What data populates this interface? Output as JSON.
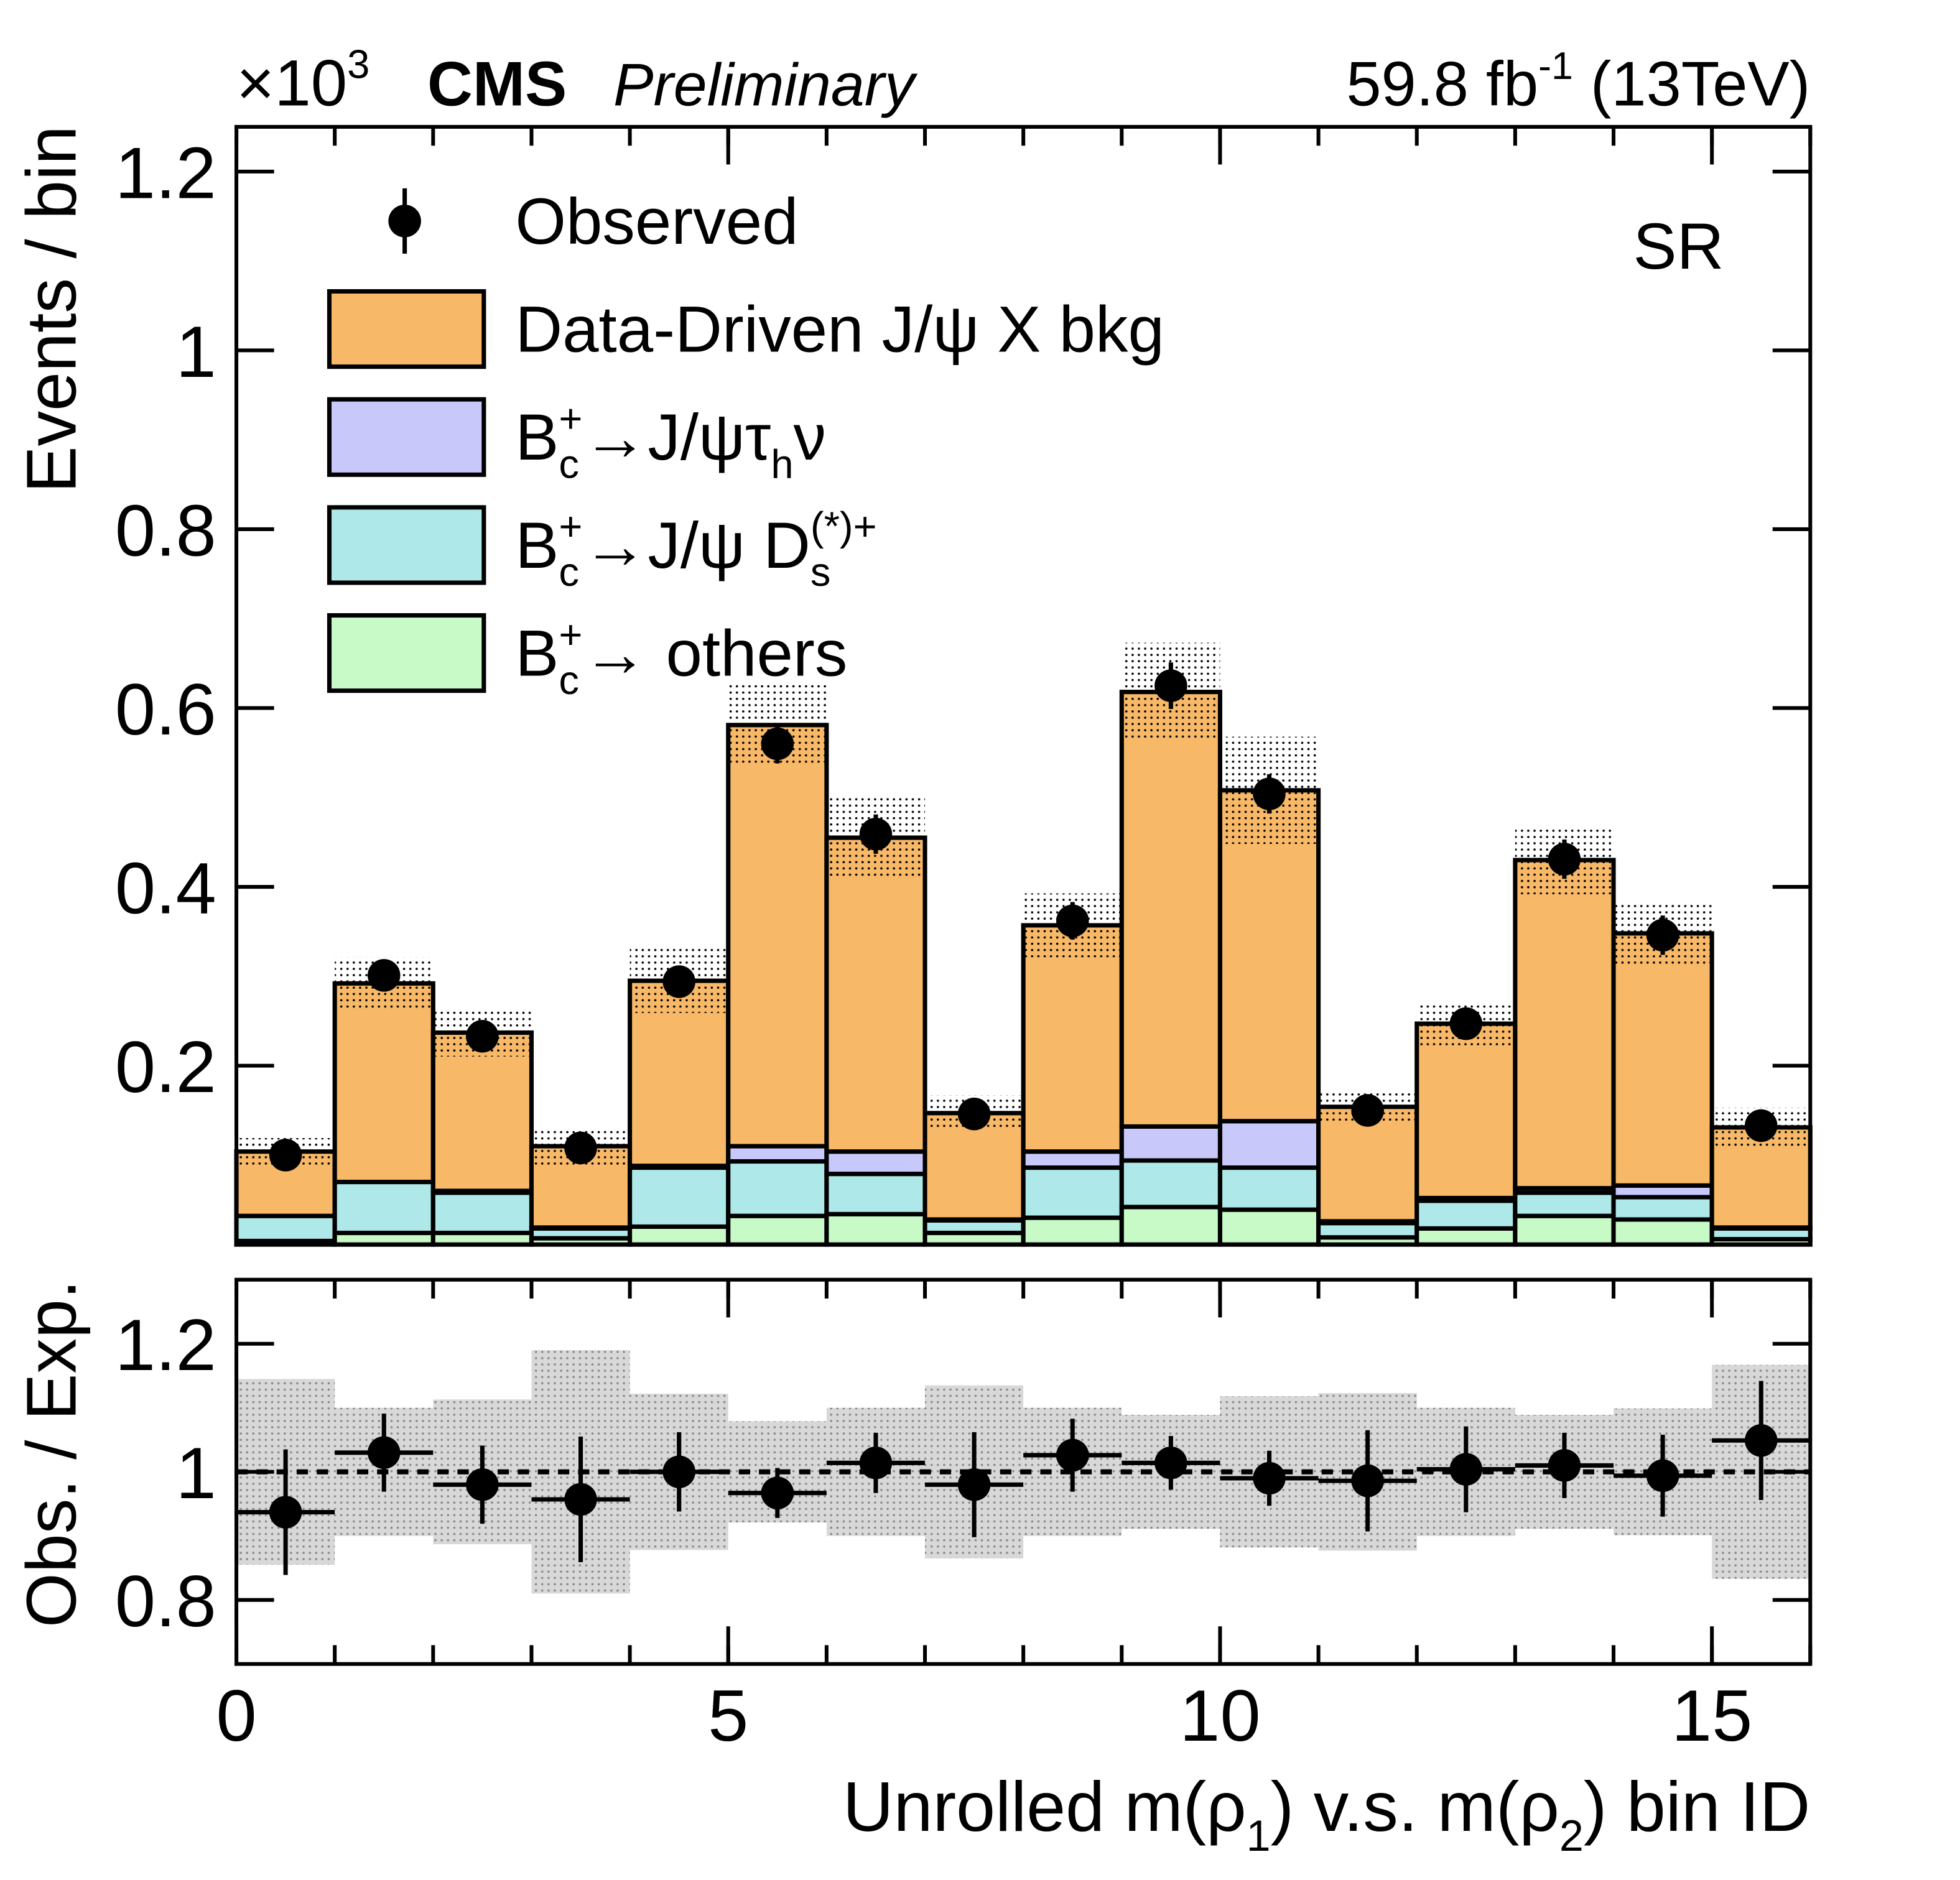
{
  "chart_data": [
    {
      "type": "histogram",
      "multiplier": [
        {
          "t": "×10"
        },
        {
          "sup": "3"
        }
      ],
      "experiment": "CMS",
      "status": "Preliminary",
      "lumi": [
        {
          "t": "59.8 fb"
        },
        {
          "sup": "-1"
        },
        {
          "t": " (13TeV)"
        }
      ],
      "region": "SR",
      "y_label": "Events / bin",
      "bins": [
        0,
        1,
        2,
        3,
        4,
        5,
        6,
        7,
        8,
        9,
        10,
        11,
        12,
        13,
        14,
        15,
        16
      ],
      "xlim": [
        0,
        16
      ],
      "ylim": [
        0,
        1.25
      ],
      "yticks": [
        0.2,
        0.4,
        0.6,
        0.8,
        1,
        1.2
      ],
      "stacked": true,
      "series": [
        {
          "name": [
            {
              "t": "Data-Driven J/ψ X bkg"
            }
          ],
          "color": "#f7b867",
          "values": [
            0.072,
            0.222,
            0.177,
            0.091,
            0.207,
            0.471,
            0.351,
            0.119,
            0.253,
            0.486,
            0.37,
            0.128,
            0.195,
            0.367,
            0.282,
            0.112
          ]
        },
        {
          "name": [
            {
              "t": "B"
            },
            {
              "sup": "+",
              "sub": "c"
            },
            {
              "t": "→J/ψτ"
            },
            {
              "sub": "h"
            },
            {
              "t": "ν"
            }
          ],
          "color": "#c8c8fa",
          "values": [
            0.0,
            0.0,
            0.002,
            0.001,
            0.002,
            0.017,
            0.025,
            0.001,
            0.018,
            0.038,
            0.052,
            0.002,
            0.003,
            0.005,
            0.013,
            0.001
          ]
        },
        {
          "name": [
            {
              "t": "B"
            },
            {
              "sup": "+",
              "sub": "c"
            },
            {
              "t": "→J/ψ D"
            },
            {
              "sup": "(*)+",
              "sub": "s"
            }
          ],
          "color": "#aee8e8",
          "values": [
            0.028,
            0.057,
            0.045,
            0.011,
            0.066,
            0.061,
            0.045,
            0.014,
            0.056,
            0.052,
            0.047,
            0.016,
            0.031,
            0.026,
            0.025,
            0.012
          ]
        },
        {
          "name": [
            {
              "t": "B"
            },
            {
              "sup": "+",
              "sub": "c"
            },
            {
              "t": "→ others"
            }
          ],
          "color": "#c8fac8",
          "values": [
            0.004,
            0.013,
            0.013,
            0.007,
            0.02,
            0.032,
            0.034,
            0.013,
            0.03,
            0.042,
            0.039,
            0.008,
            0.018,
            0.032,
            0.028,
            0.006
          ]
        }
      ],
      "observed": {
        "name": [
          {
            "t": "Observed"
          }
        ],
        "color": "#000000",
        "values": [
          0.1,
          0.301,
          0.233,
          0.108,
          0.294,
          0.56,
          0.459,
          0.146,
          0.362,
          0.625,
          0.504,
          0.15,
          0.247,
          0.431,
          0.346,
          0.133
        ],
        "errors": [
          0.01,
          0.018,
          0.014,
          0.011,
          0.018,
          0.022,
          0.022,
          0.012,
          0.021,
          0.026,
          0.022,
          0.012,
          0.017,
          0.022,
          0.022,
          0.012
        ]
      }
    },
    {
      "type": "ratio",
      "y_label": "Obs. / Exp.",
      "x_label": [
        {
          "t": "Unrolled m(ρ"
        },
        {
          "sub": "1"
        },
        {
          "t": ") v.s. m(ρ"
        },
        {
          "sub": "2"
        },
        {
          "t": ") bin ID"
        }
      ],
      "xlim": [
        0,
        16
      ],
      "xticks": [
        0,
        5,
        10,
        15
      ],
      "ylim": [
        0.7,
        1.3
      ],
      "yticks": [
        0.8,
        1,
        1.2
      ],
      "reference": 1,
      "color": "#000000",
      "values": [
        0.937,
        1.03,
        0.98,
        0.957,
        1.0,
        0.967,
        1.014,
        0.98,
        1.026,
        1.014,
        0.99,
        0.986,
        1.004,
        1.01,
        0.994,
        1.049
      ],
      "errors": [
        0.098,
        0.061,
        0.061,
        0.098,
        0.062,
        0.039,
        0.047,
        0.082,
        0.057,
        0.042,
        0.043,
        0.079,
        0.067,
        0.051,
        0.064,
        0.093
      ],
      "band": [
        0.145,
        0.1,
        0.113,
        0.19,
        0.122,
        0.079,
        0.1,
        0.135,
        0.1,
        0.089,
        0.118,
        0.123,
        0.1,
        0.089,
        0.099,
        0.167
      ]
    }
  ]
}
